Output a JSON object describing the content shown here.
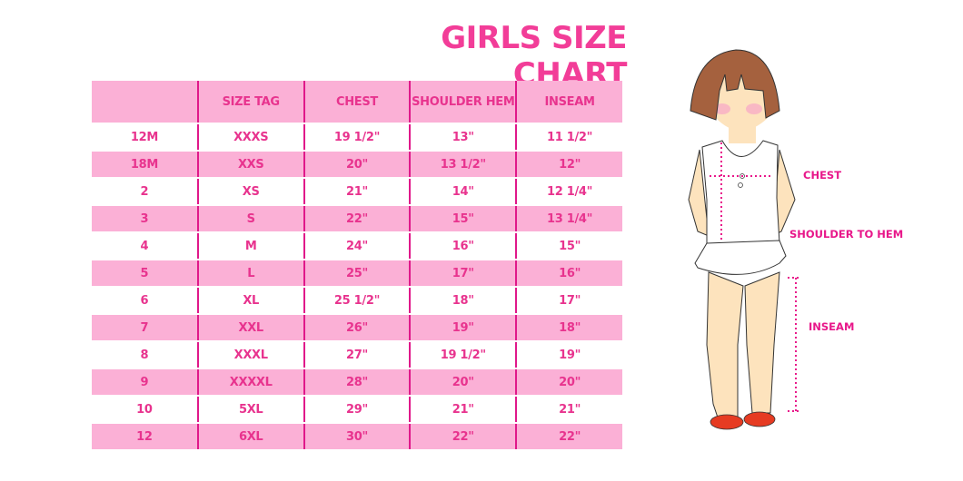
{
  "title": "GIRLS SIZE CHART",
  "table": {
    "headers": [
      "",
      "SIZE TAG",
      "CHEST",
      "SHOULDER HEM",
      "INSEAM"
    ],
    "rows": [
      [
        "12M",
        "XXXS",
        "19 1/2\"",
        "13\"",
        "11 1/2\""
      ],
      [
        "18M",
        "XXS",
        "20\"",
        "13 1/2\"",
        "12\""
      ],
      [
        "2",
        "XS",
        "21\"",
        "14\"",
        "12 1/4\""
      ],
      [
        "3",
        "S",
        "22\"",
        "15\"",
        "13 1/4\""
      ],
      [
        "4",
        "M",
        "24\"",
        "16\"",
        "15\""
      ],
      [
        "5",
        "L",
        "25\"",
        "17\"",
        "16\""
      ],
      [
        "6",
        "XL",
        "25 1/2\"",
        "18\"",
        "17\""
      ],
      [
        "7",
        "XXL",
        "26\"",
        "19\"",
        "18\""
      ],
      [
        "8",
        "XXXL",
        "27\"",
        "19 1/2\"",
        "19\""
      ],
      [
        "9",
        "XXXXL",
        "28\"",
        "20\"",
        "20\""
      ],
      [
        "10",
        "5XL",
        "29\"",
        "21\"",
        "21\""
      ],
      [
        "12",
        "6XL",
        "30\"",
        "22\"",
        "22\""
      ]
    ]
  },
  "diagram": {
    "chest_label": "CHEST",
    "shoulder_label": "SHOULDER TO HEM",
    "inseam_label": "INSEAM"
  },
  "colors": {
    "accent": "#f23d98",
    "row_pink": "#fbb0d6",
    "divider": "#e0188a"
  }
}
